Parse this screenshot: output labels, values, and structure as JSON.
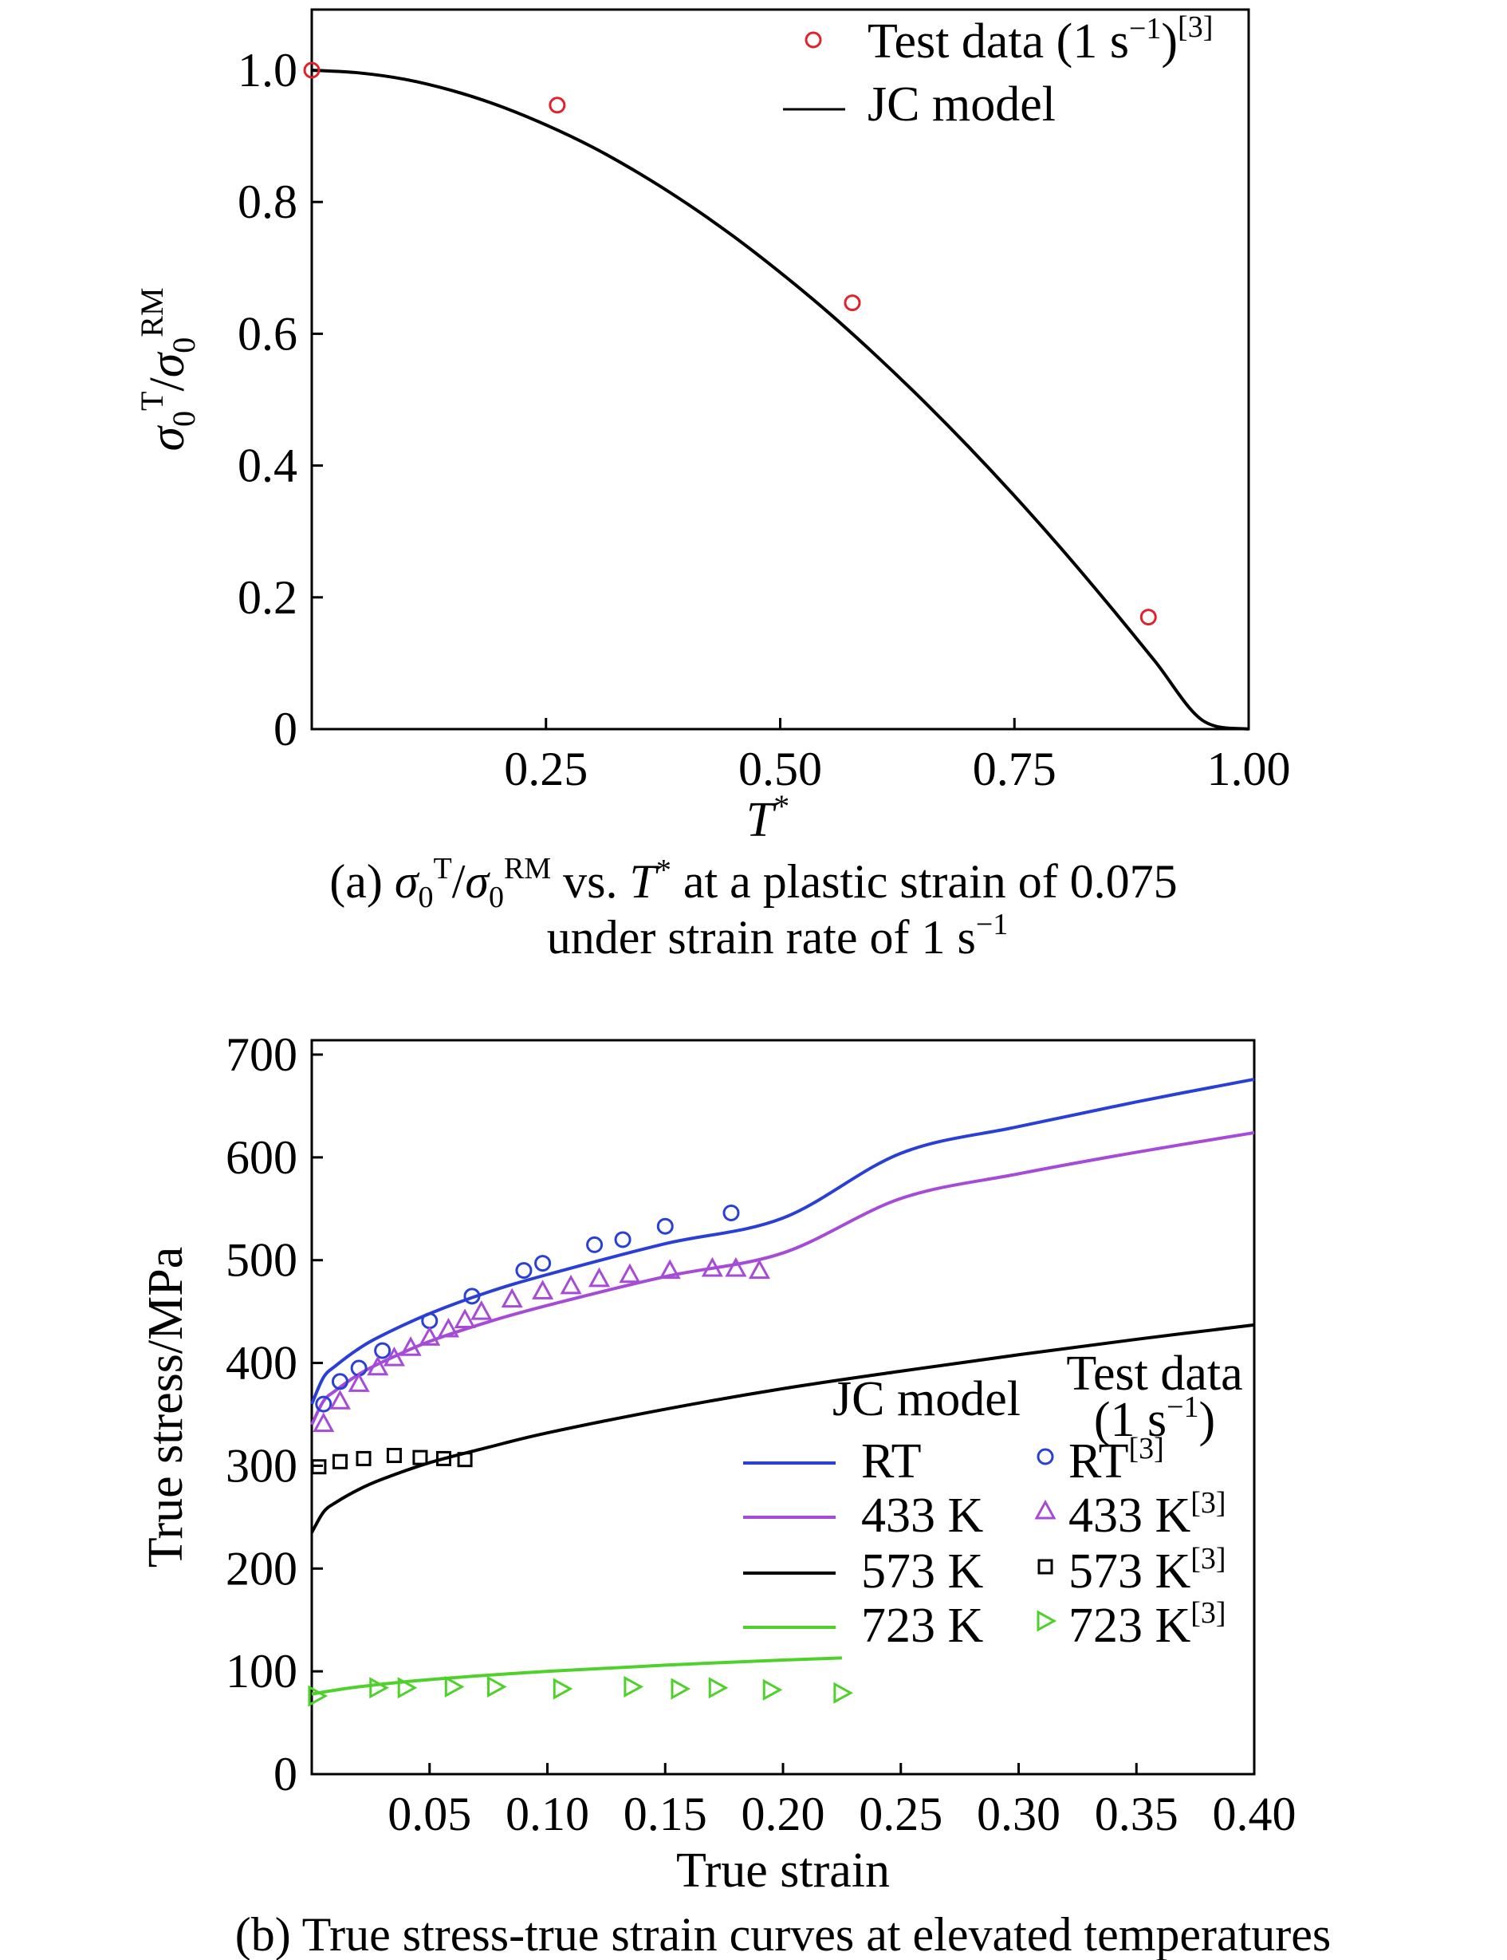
{
  "chart_data": [
    {
      "type": "line",
      "panel": "a",
      "xlabel": "T*",
      "ylabel": "σ0T/σ0RM",
      "xlim": [
        0,
        1.0
      ],
      "ylim": [
        0,
        1.0
      ],
      "xticks": [
        0.25,
        0.5,
        0.75,
        1.0
      ],
      "xtick_labels": [
        "0.25",
        "0.50",
        "0.75",
        "1.00"
      ],
      "yticks": [
        0,
        0.2,
        0.4,
        0.6,
        0.8,
        1.0
      ],
      "ytick_labels": [
        "0",
        "0.2",
        "0.4",
        "0.6",
        "0.8",
        "1.0"
      ],
      "grid": false,
      "legend_position": "top-right",
      "series": [
        {
          "name": "Test data (1 s⁻¹)[3]",
          "kind": "scatter",
          "marker": "circle",
          "color": "#e0232a",
          "x": [
            0.0,
            0.262,
            0.577,
            0.893
          ],
          "y": [
            1.0,
            0.947,
            0.647,
            0.17
          ]
        },
        {
          "name": "JC model",
          "kind": "line",
          "color": "#000000",
          "x": [
            0.0,
            0.05,
            0.1,
            0.15,
            0.2,
            0.25,
            0.3,
            0.35,
            0.4,
            0.45,
            0.5,
            0.55,
            0.6,
            0.65,
            0.7,
            0.75,
            0.8,
            0.85,
            0.9,
            0.95,
            1.0
          ],
          "y": [
            1.0,
            0.996,
            0.986,
            0.969,
            0.946,
            0.917,
            0.883,
            0.843,
            0.798,
            0.748,
            0.693,
            0.634,
            0.57,
            0.502,
            0.43,
            0.354,
            0.274,
            0.19,
            0.103,
            0.014,
            0.0
          ]
        }
      ],
      "caption": {
        "line1_prefix": "(a) ",
        "sigma": "σ",
        "sub0": "0",
        "supT": "T",
        "slash": "/",
        "supRM": "RM",
        "vs": " vs. ",
        "T": "T",
        "star": "*",
        "rest": " at a plastic strain of 0.075",
        "line2": "under strain rate of 1 s",
        "line2_sup": "−1"
      }
    },
    {
      "type": "line",
      "panel": "b",
      "xlabel": "True strain",
      "ylabel": "True stress/MPa",
      "xlim": [
        0,
        0.4
      ],
      "ylim": [
        0,
        700
      ],
      "xticks": [
        0.05,
        0.1,
        0.15,
        0.2,
        0.25,
        0.3,
        0.35,
        0.4
      ],
      "xtick_labels": [
        "0.05",
        "0.10",
        "0.15",
        "0.20",
        "0.25",
        "0.30",
        "0.35",
        "0.40"
      ],
      "yticks": [
        0,
        100,
        200,
        300,
        400,
        500,
        600,
        700
      ],
      "ytick_labels": [
        "0",
        "100",
        "200",
        "300",
        "400",
        "500",
        "600",
        "700"
      ],
      "grid": false,
      "legend_position": "lower-right",
      "legend": {
        "model_title": "JC model",
        "test_title_1": "Test data",
        "test_title_2": "(1 s",
        "test_title_sup": "−1",
        "test_title_3": ")",
        "ref": "[3]"
      },
      "series": [
        {
          "name": "RT",
          "kind": "line",
          "color": "#2a3fd6",
          "x": [
            0.0,
            0.005,
            0.01,
            0.02,
            0.03,
            0.05,
            0.075,
            0.1,
            0.15,
            0.2,
            0.25,
            0.3,
            0.35,
            0.4
          ],
          "y": [
            360,
            386,
            397,
            414,
            427,
            448,
            469,
            486,
            516,
            541,
            604,
            630,
            654,
            676
          ]
        },
        {
          "name": "433 K",
          "kind": "line",
          "color": "#a64bd8",
          "x": [
            0.0,
            0.005,
            0.01,
            0.02,
            0.03,
            0.05,
            0.075,
            0.1,
            0.15,
            0.2,
            0.25,
            0.3,
            0.35,
            0.4
          ],
          "y": [
            340,
            363,
            373,
            389,
            401,
            421,
            440,
            456,
            484,
            507,
            560,
            584,
            605,
            624
          ]
        },
        {
          "name": "573 K",
          "kind": "line",
          "color": "#000000",
          "x": [
            0.0,
            0.005,
            0.01,
            0.02,
            0.03,
            0.05,
            0.075,
            0.1,
            0.15,
            0.2,
            0.25,
            0.3,
            0.35,
            0.4
          ],
          "y": [
            235,
            255,
            264,
            277,
            287,
            303,
            318,
            332,
            355,
            375,
            392,
            408,
            423,
            437
          ]
        },
        {
          "name": "723 K",
          "kind": "line",
          "color": "#4fd12b",
          "x": [
            0.0,
            0.02,
            0.05,
            0.1,
            0.15,
            0.2,
            0.225
          ],
          "y": [
            78,
            85,
            92,
            100,
            106,
            111,
            113
          ]
        },
        {
          "name": "RT[3]",
          "kind": "scatter",
          "marker": "circle",
          "color": "#2a3fd6",
          "x": [
            0.005,
            0.012,
            0.02,
            0.03,
            0.05,
            0.068,
            0.09,
            0.098,
            0.12,
            0.132,
            0.15,
            0.178
          ],
          "y": [
            360,
            382,
            395,
            412,
            441,
            465,
            490,
            497,
            515,
            520,
            533,
            546
          ]
        },
        {
          "name": "433 K[3]",
          "kind": "scatter",
          "marker": "triangle",
          "color": "#a64bd8",
          "x": [
            0.005,
            0.012,
            0.02,
            0.028,
            0.035,
            0.042,
            0.05,
            0.058,
            0.065,
            0.072,
            0.085,
            0.098,
            0.11,
            0.122,
            0.135,
            0.152,
            0.17,
            0.18,
            0.19
          ],
          "y": [
            341,
            363,
            380,
            396,
            405,
            415,
            425,
            433,
            442,
            450,
            462,
            470,
            475,
            482,
            486,
            490,
            492,
            492,
            490
          ]
        },
        {
          "name": "573 K[3]",
          "kind": "scatter",
          "marker": "square",
          "color": "#000000",
          "x": [
            0.003,
            0.012,
            0.022,
            0.035,
            0.046,
            0.056,
            0.065
          ],
          "y": [
            299,
            304,
            307,
            310,
            308,
            307,
            306
          ]
        },
        {
          "name": "723 K[3]",
          "kind": "scatter",
          "marker": "triangle-right",
          "color": "#4fd12b",
          "x": [
            0.002,
            0.028,
            0.04,
            0.06,
            0.078,
            0.106,
            0.136,
            0.156,
            0.172,
            0.195,
            0.225
          ],
          "y": [
            76,
            84,
            84,
            85,
            85,
            83,
            85,
            83,
            84,
            82,
            79
          ]
        }
      ],
      "caption": "(b) True stress-true strain curves at elevated temperatures"
    }
  ]
}
